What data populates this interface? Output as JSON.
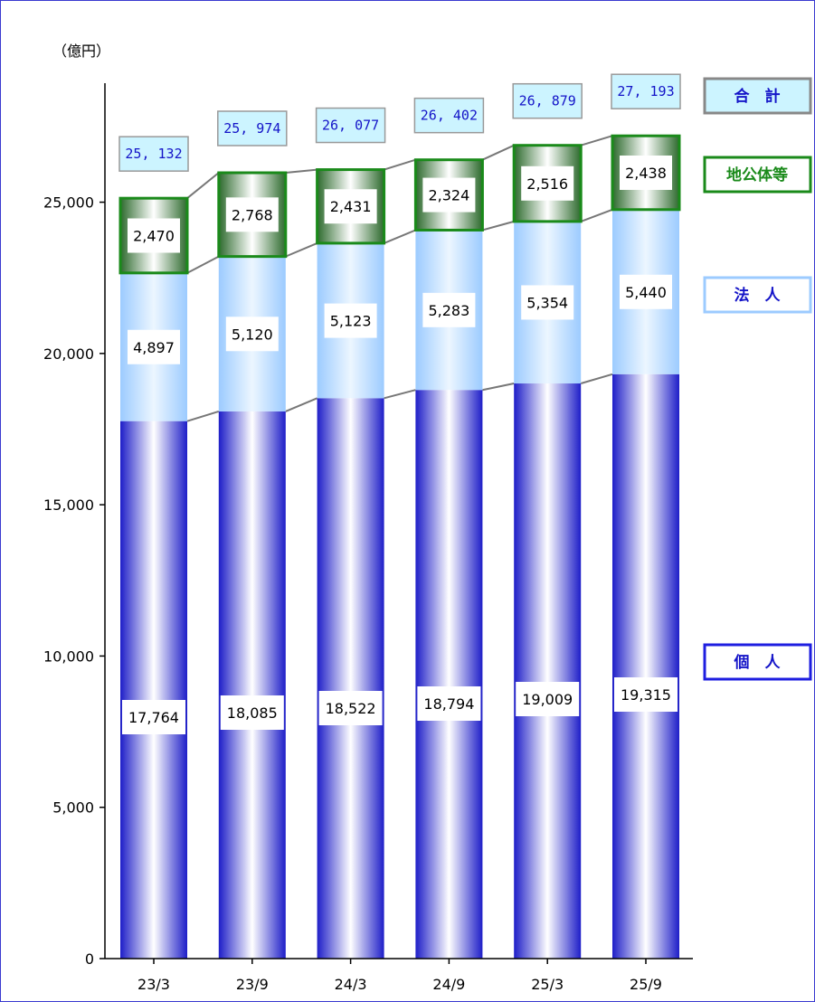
{
  "chart_data": {
    "type": "bar",
    "stacked": true,
    "unit_label": "（億円）",
    "categories": [
      "23/3",
      "23/9",
      "24/3",
      "24/9",
      "25/3",
      "25/9"
    ],
    "series": [
      {
        "name": "個　人",
        "values": [
          17764,
          18085,
          18522,
          18794,
          19009,
          19315
        ]
      },
      {
        "name": "法　人",
        "values": [
          4897,
          5120,
          5123,
          5283,
          5354,
          5440
        ]
      },
      {
        "name": "地公体等",
        "values": [
          2470,
          2768,
          2431,
          2324,
          2516,
          2438
        ]
      }
    ],
    "series_labels": [
      [
        "17,764",
        "18,085",
        "18,522",
        "18,794",
        "19,009",
        "19,315"
      ],
      [
        "4,897",
        "5,120",
        "5,123",
        "5,283",
        "5,354",
        "5,440"
      ],
      [
        "2,470",
        "2,768",
        "2,431",
        "2,324",
        "2,516",
        "2,438"
      ]
    ],
    "totals": {
      "name": "合　計",
      "values": [
        25132,
        25974,
        26077,
        26402,
        26879,
        27193
      ]
    },
    "total_labels": [
      "25, 132",
      "25, 974",
      "26, 077",
      "26, 402",
      "26, 879",
      "27, 193"
    ],
    "ylim": [
      0,
      30000
    ],
    "yticks": [
      0,
      5000,
      10000,
      15000,
      20000,
      25000
    ],
    "ytick_labels": [
      "0",
      "5,000",
      "10,000",
      "15,000",
      "20,000",
      "25,000"
    ],
    "grid": false,
    "legend_position": "right",
    "colors": {
      "individual": "#1e1ee0",
      "corporate": "#9ccbff",
      "local_gov": "#1a8a1a",
      "total_box": "#ccf4ff",
      "total_text": "#1414c8",
      "frame": "#3a3ad0"
    }
  }
}
